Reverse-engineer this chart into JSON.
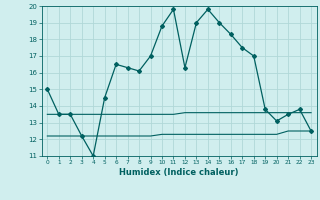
{
  "xlabel": "Humidex (Indice chaleur)",
  "x": [
    0,
    1,
    2,
    3,
    4,
    5,
    6,
    7,
    8,
    9,
    10,
    11,
    12,
    13,
    14,
    15,
    16,
    17,
    18,
    19,
    20,
    21,
    22,
    23
  ],
  "main_line": [
    15,
    13.5,
    13.5,
    12.2,
    11.0,
    14.5,
    16.5,
    16.3,
    16.1,
    17.0,
    18.8,
    19.8,
    16.3,
    19.0,
    19.8,
    19.0,
    18.3,
    17.5,
    17.0,
    13.8,
    13.1,
    13.5,
    13.8,
    12.5
  ],
  "upper_line": [
    13.5,
    13.5,
    13.5,
    13.5,
    13.5,
    13.5,
    13.5,
    13.5,
    13.5,
    13.5,
    13.5,
    13.5,
    13.6,
    13.6,
    13.6,
    13.6,
    13.6,
    13.6,
    13.6,
    13.6,
    13.6,
    13.6,
    13.6,
    13.6
  ],
  "lower_line": [
    12.2,
    12.2,
    12.2,
    12.2,
    12.2,
    12.2,
    12.2,
    12.2,
    12.2,
    12.2,
    12.3,
    12.3,
    12.3,
    12.3,
    12.3,
    12.3,
    12.3,
    12.3,
    12.3,
    12.3,
    12.3,
    12.5,
    12.5,
    12.5
  ],
  "line_color": "#006060",
  "bg_color": "#d0eeee",
  "grid_color": "#b0d8d8",
  "ylim": [
    11,
    20
  ],
  "yticks": [
    11,
    12,
    13,
    14,
    15,
    16,
    17,
    18,
    19,
    20
  ],
  "xticks": [
    0,
    1,
    2,
    3,
    4,
    5,
    6,
    7,
    8,
    9,
    10,
    11,
    12,
    13,
    14,
    15,
    16,
    17,
    18,
    19,
    20,
    21,
    22,
    23
  ]
}
